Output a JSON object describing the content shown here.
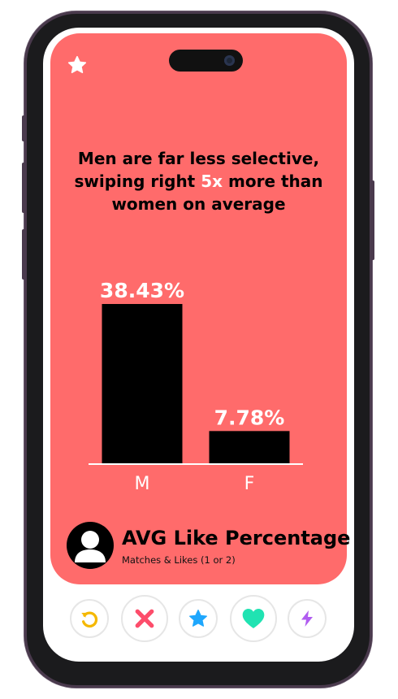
{
  "headline": {
    "line1": "Men are far less selective,",
    "line2_pre": "swiping right ",
    "line2_highlight": "5x",
    "line2_post": " more than",
    "line3": "women on average"
  },
  "chart_data": {
    "type": "bar",
    "categories": [
      "M",
      "F"
    ],
    "values": [
      38.43,
      7.78
    ],
    "value_labels": [
      "38.43%",
      "7.78%"
    ],
    "ylim": [
      0,
      40
    ],
    "bar_color": "#000000",
    "grid": false
  },
  "footer": {
    "title": "AVG Like Percentage",
    "subtitle": "Matches & Likes (1 or 2)"
  },
  "actions": [
    {
      "icon": "rewind-icon",
      "color": "#f5b800"
    },
    {
      "icon": "nope-x-icon",
      "color": "#fd4d6b"
    },
    {
      "icon": "super-like-star-icon",
      "color": "#1ea7fd"
    },
    {
      "icon": "like-heart-icon",
      "color": "#20e3b2"
    },
    {
      "icon": "boost-bolt-icon",
      "color": "#b05cf0"
    }
  ],
  "colors": {
    "card_background": "#ff6b6b",
    "highlight_text": "#ffffff",
    "phone_frame": "#1b1b1d"
  }
}
